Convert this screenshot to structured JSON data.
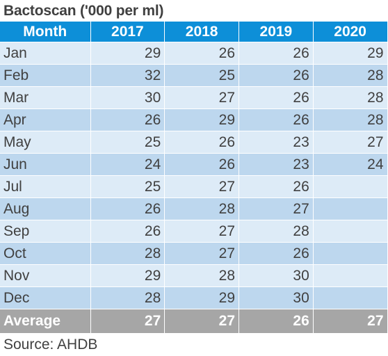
{
  "title": "Bactoscan ('000 per ml)",
  "header": {
    "month": "Month",
    "years": [
      "2017",
      "2018",
      "2019",
      "2020"
    ]
  },
  "rows": [
    {
      "month": "Jan",
      "values": [
        "29",
        "26",
        "26",
        "29"
      ]
    },
    {
      "month": "Feb",
      "values": [
        "32",
        "25",
        "26",
        "28"
      ]
    },
    {
      "month": "Mar",
      "values": [
        "30",
        "27",
        "26",
        "28"
      ]
    },
    {
      "month": "Apr",
      "values": [
        "26",
        "29",
        "26",
        "28"
      ]
    },
    {
      "month": "May",
      "values": [
        "25",
        "26",
        "23",
        "27"
      ]
    },
    {
      "month": "Jun",
      "values": [
        "24",
        "26",
        "23",
        "24"
      ]
    },
    {
      "month": "Jul",
      "values": [
        "25",
        "27",
        "26",
        ""
      ]
    },
    {
      "month": "Aug",
      "values": [
        "26",
        "28",
        "27",
        ""
      ]
    },
    {
      "month": "Sep",
      "values": [
        "26",
        "27",
        "28",
        ""
      ]
    },
    {
      "month": "Oct",
      "values": [
        "28",
        "27",
        "26",
        ""
      ]
    },
    {
      "month": "Nov",
      "values": [
        "29",
        "28",
        "30",
        ""
      ]
    },
    {
      "month": "Dec",
      "values": [
        "28",
        "29",
        "30",
        ""
      ]
    }
  ],
  "average": {
    "label": "Average",
    "values": [
      "27",
      "27",
      "26",
      "27"
    ]
  },
  "source": "Source: AHDB",
  "colors": {
    "header": "#0d8fd8",
    "row_light": "#ddebf7",
    "row_dark": "#bdd7ee",
    "footer": "#a6a6a6",
    "text": "#404040"
  }
}
